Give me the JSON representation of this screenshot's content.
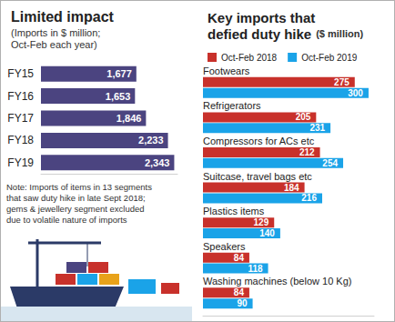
{
  "chart_data": [
    {
      "type": "bar",
      "orientation": "horizontal",
      "title": "Limited impact",
      "subtitle": "(Imports in $ million;\nOct-Feb each year)",
      "note": "Note: Imports of items in 13 segments\nthat saw duty hike in late Sept 2018;\ngems & jewellery segment excluded\ndue to volatile nature of imports",
      "categories": [
        "FY15",
        "FY16",
        "FY17",
        "FY18",
        "FY19"
      ],
      "values": [
        1677,
        1653,
        1846,
        2233,
        2343
      ],
      "value_labels": [
        "1,677",
        "1,653",
        "1,846",
        "2,233",
        "2,343"
      ],
      "color": "#4b4480",
      "xlim": [
        0,
        2400
      ],
      "grid": false,
      "data_labels": true,
      "tick_labels": "y"
    },
    {
      "type": "bar",
      "orientation": "horizontal",
      "title": "Key imports that\ndefied duty hike",
      "subtitle": "($ million)",
      "categories": [
        "Footwears",
        "Refrigerators",
        "Compressors for ACs etc",
        "Suitcase, travel bags etc",
        "Plastics items",
        "Speakers",
        "Washing machines (below 10 Kg)"
      ],
      "series": [
        {
          "name": "Oct-Feb 2018",
          "color": "#c8312b",
          "values": [
            275,
            205,
            212,
            184,
            129,
            84,
            84
          ]
        },
        {
          "name": "Oct-Feb 2019",
          "color": "#1aa3e8",
          "values": [
            300,
            231,
            254,
            216,
            140,
            118,
            90
          ]
        }
      ],
      "xlim": [
        0,
        310
      ],
      "grid": false,
      "legend": "top",
      "data_labels": true,
      "tick_labels": "y"
    }
  ]
}
